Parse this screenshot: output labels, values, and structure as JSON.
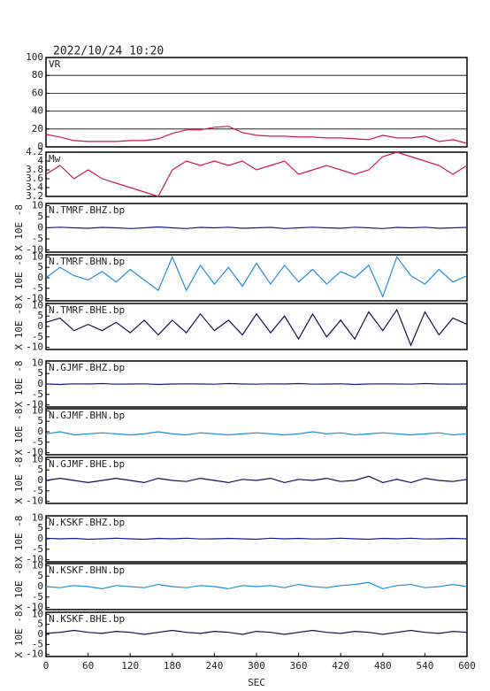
{
  "chart_data": [
    {
      "type": "line",
      "title": "2022/10/24 10:20",
      "label": "VR",
      "color": "#cc1a4a",
      "grid": true,
      "xlim": [
        0,
        600
      ],
      "ylim": [
        0,
        100
      ],
      "yticks": [
        0,
        20,
        40,
        60,
        80,
        100
      ],
      "x": [
        0,
        20,
        40,
        60,
        80,
        100,
        120,
        140,
        160,
        180,
        200,
        220,
        240,
        260,
        280,
        300,
        320,
        340,
        360,
        380,
        400,
        420,
        440,
        460,
        480,
        500,
        520,
        540,
        560,
        580,
        600
      ],
      "values": [
        14,
        11,
        7,
        6,
        6,
        6,
        7,
        7,
        9,
        15,
        19,
        19,
        22,
        23,
        16,
        13,
        12,
        12,
        11,
        11,
        10,
        10,
        9,
        8,
        13,
        10,
        10,
        12,
        6,
        8,
        4
      ]
    },
    {
      "type": "line",
      "label": "Mw",
      "color": "#cc1a4a",
      "grid": false,
      "xlim": [
        0,
        600
      ],
      "ylim": [
        3.2,
        4.2
      ],
      "yticks": [
        3.2,
        3.4,
        3.6,
        3.8,
        4,
        4.2
      ],
      "x": [
        0,
        20,
        40,
        60,
        80,
        100,
        120,
        140,
        160,
        180,
        200,
        220,
        240,
        260,
        280,
        300,
        320,
        340,
        360,
        380,
        400,
        420,
        440,
        460,
        480,
        500,
        520,
        540,
        560,
        580,
        600
      ],
      "values": [
        3.7,
        3.9,
        3.6,
        3.8,
        3.6,
        3.5,
        3.4,
        3.3,
        3.2,
        3.8,
        4.0,
        3.9,
        4.0,
        3.9,
        4.0,
        3.8,
        3.9,
        4.0,
        3.7,
        3.8,
        3.9,
        3.8,
        3.7,
        3.8,
        4.1,
        4.2,
        4.1,
        4.0,
        3.9,
        3.7,
        3.9
      ]
    },
    {
      "type": "line",
      "label": "N.TMRF.BHZ.bp",
      "ylabel": "X 10E -8",
      "color": "#1a1a8c",
      "grid": false,
      "xlim": [
        0,
        600
      ],
      "ylim": [
        -11,
        11
      ],
      "yticks": [
        -10,
        -5,
        0,
        5,
        10
      ],
      "x": [
        0,
        20,
        40,
        60,
        80,
        100,
        120,
        140,
        160,
        180,
        200,
        220,
        240,
        260,
        280,
        300,
        320,
        340,
        360,
        380,
        400,
        420,
        440,
        460,
        480,
        500,
        520,
        540,
        560,
        580,
        600
      ],
      "values": [
        0,
        0.3,
        0,
        -0.2,
        0.2,
        0,
        -0.3,
        0,
        0.4,
        0,
        -0.3,
        0.2,
        0,
        0.3,
        -0.2,
        0,
        0.2,
        -0.3,
        0,
        0.3,
        0,
        -0.2,
        0.3,
        0,
        -0.3,
        0.2,
        0,
        0.3,
        -0.2,
        0,
        0.2
      ]
    },
    {
      "type": "line",
      "label": "N.TMRF.BHN.bp",
      "ylabel": "X 10E -8",
      "color": "#1e8fd6",
      "grid": false,
      "xlim": [
        0,
        600
      ],
      "ylim": [
        -11,
        11
      ],
      "yticks": [
        -10,
        -5,
        0,
        5,
        10
      ],
      "x": [
        0,
        20,
        40,
        60,
        80,
        100,
        120,
        140,
        160,
        180,
        200,
        220,
        240,
        260,
        280,
        300,
        320,
        340,
        360,
        380,
        400,
        420,
        440,
        460,
        480,
        500,
        520,
        540,
        560,
        580,
        600
      ],
      "values": [
        0,
        5,
        1,
        -1,
        3,
        -2,
        4,
        -1,
        -6,
        10,
        -6,
        6,
        -3,
        5,
        -4,
        7,
        -3,
        6,
        -2,
        4,
        -3,
        3,
        0,
        6,
        -9,
        10,
        1,
        -3,
        4,
        -2,
        1
      ]
    },
    {
      "type": "line",
      "label": "N.TMRF.BHE.bp",
      "ylabel": "X 10E -8",
      "color": "#10104a",
      "grid": false,
      "xlim": [
        0,
        600
      ],
      "ylim": [
        -11,
        11
      ],
      "yticks": [
        -10,
        -5,
        0,
        5,
        10
      ],
      "x": [
        0,
        20,
        40,
        60,
        80,
        100,
        120,
        140,
        160,
        180,
        200,
        220,
        240,
        260,
        280,
        300,
        320,
        340,
        360,
        380,
        400,
        420,
        440,
        460,
        480,
        500,
        520,
        540,
        560,
        580,
        600
      ],
      "values": [
        2,
        4,
        -2,
        1,
        -2,
        2,
        -3,
        3,
        -4,
        3,
        -3,
        6,
        -2,
        3,
        -4,
        6,
        -3,
        5,
        -6,
        6,
        -5,
        3,
        -6,
        7,
        -2,
        8,
        -9,
        7,
        -4,
        4,
        1
      ]
    },
    {
      "type": "line",
      "label": "N.GJMF.BHZ.bp",
      "ylabel": "X 10E -8",
      "color": "#1a1a8c",
      "grid": false,
      "xlim": [
        0,
        600
      ],
      "ylim": [
        -11,
        11
      ],
      "yticks": [
        -10,
        -5,
        0,
        5,
        10
      ],
      "x": [
        0,
        20,
        40,
        60,
        80,
        100,
        120,
        140,
        160,
        180,
        200,
        220,
        240,
        260,
        280,
        300,
        320,
        340,
        360,
        380,
        400,
        420,
        440,
        460,
        480,
        500,
        520,
        540,
        560,
        580,
        600
      ],
      "values": [
        0,
        -0.2,
        0.1,
        0,
        0.2,
        -0.1,
        0,
        0.1,
        -0.2,
        0,
        0.1,
        0,
        -0.1,
        0.2,
        0,
        -0.1,
        0.1,
        0,
        0.2,
        -0.1,
        0,
        0.1,
        -0.2,
        0,
        0.1,
        0,
        -0.1,
        0.2,
        0,
        -0.1,
        0
      ]
    },
    {
      "type": "line",
      "label": "N.GJMF.BHN.bp",
      "ylabel": "X 10E -8",
      "color": "#1e8fd6",
      "grid": false,
      "xlim": [
        0,
        600
      ],
      "ylim": [
        -11,
        11
      ],
      "yticks": [
        -10,
        -5,
        0,
        5,
        10
      ],
      "x": [
        0,
        20,
        40,
        60,
        80,
        100,
        120,
        140,
        160,
        180,
        200,
        220,
        240,
        260,
        280,
        300,
        320,
        340,
        360,
        380,
        400,
        420,
        440,
        460,
        480,
        500,
        520,
        540,
        560,
        580,
        600
      ],
      "values": [
        -1,
        0,
        -1.5,
        -1,
        -0.5,
        -1,
        -1.5,
        -1,
        0,
        -1,
        -1.5,
        -0.5,
        -1,
        -1.5,
        -1,
        -0.5,
        -1,
        -1.5,
        -1,
        0,
        -1,
        -0.5,
        -1.5,
        -1,
        -0.5,
        -1,
        -1.5,
        -1,
        -0.5,
        -1.5,
        -1
      ]
    },
    {
      "type": "line",
      "label": "N.GJMF.BHE.bp",
      "ylabel": "X 10E -8",
      "color": "#10104a",
      "grid": false,
      "xlim": [
        0,
        600
      ],
      "ylim": [
        -11,
        11
      ],
      "yticks": [
        -10,
        -5,
        0,
        5,
        10
      ],
      "x": [
        0,
        20,
        40,
        60,
        80,
        100,
        120,
        140,
        160,
        180,
        200,
        220,
        240,
        260,
        280,
        300,
        320,
        340,
        360,
        380,
        400,
        420,
        440,
        460,
        480,
        500,
        520,
        540,
        560,
        580,
        600
      ],
      "values": [
        0,
        1,
        0,
        -1,
        0,
        1,
        0,
        -1,
        1,
        0,
        -0.5,
        1,
        0,
        -1,
        0.5,
        0,
        1,
        -1,
        0.5,
        0,
        1,
        -0.5,
        0,
        2,
        -1,
        0.5,
        -1,
        1,
        0,
        -0.5,
        0.5
      ]
    },
    {
      "type": "line",
      "label": "N.KSKF.BHZ.bp",
      "ylabel": "X 10E -8",
      "color": "#1a1a8c",
      "grid": false,
      "xlim": [
        0,
        600
      ],
      "ylim": [
        -11,
        11
      ],
      "yticks": [
        -10,
        -5,
        0,
        5,
        10
      ],
      "x": [
        0,
        20,
        40,
        60,
        80,
        100,
        120,
        140,
        160,
        180,
        200,
        220,
        240,
        260,
        280,
        300,
        320,
        340,
        360,
        380,
        400,
        420,
        440,
        460,
        480,
        500,
        520,
        540,
        560,
        580,
        600
      ],
      "values": [
        0.3,
        0,
        0.2,
        -0.2,
        0,
        0.3,
        0,
        -0.2,
        0.2,
        0,
        0.3,
        -0.1,
        0,
        0.2,
        0,
        -0.2,
        0.3,
        0,
        0.2,
        -0.1,
        0,
        0.3,
        0,
        -0.2,
        0.2,
        0,
        0.3,
        -0.1,
        0,
        0.2,
        0
      ]
    },
    {
      "type": "line",
      "label": "N.KSKF.BHN.bp",
      "ylabel": "X 10E -8",
      "color": "#1e8fd6",
      "grid": false,
      "xlim": [
        0,
        600
      ],
      "ylim": [
        -11,
        11
      ],
      "yticks": [
        -10,
        -5,
        0,
        5,
        10
      ],
      "x": [
        0,
        20,
        40,
        60,
        80,
        100,
        120,
        140,
        160,
        180,
        200,
        220,
        240,
        260,
        280,
        300,
        320,
        340,
        360,
        380,
        400,
        420,
        440,
        460,
        480,
        500,
        520,
        540,
        560,
        580,
        600
      ],
      "values": [
        0,
        -0.5,
        0.5,
        0,
        -1,
        0.5,
        0,
        -0.5,
        1,
        0,
        -0.5,
        0.5,
        0,
        -1,
        0.5,
        0,
        0.5,
        -0.5,
        1,
        0,
        -0.5,
        0.5,
        1,
        2,
        -1,
        0.5,
        1,
        -0.5,
        0,
        1,
        0
      ]
    },
    {
      "type": "line",
      "label": "N.KSKF.BHE.bp",
      "ylabel": "X 10E -8",
      "xlabel": "SEC",
      "color": "#10104a",
      "grid": false,
      "xlim": [
        0,
        600
      ],
      "ylim": [
        -11,
        11
      ],
      "yticks": [
        -10,
        -5,
        0,
        5,
        10
      ],
      "xticks": [
        0,
        60,
        120,
        180,
        240,
        300,
        360,
        420,
        480,
        540,
        600
      ],
      "x": [
        0,
        20,
        40,
        60,
        80,
        100,
        120,
        140,
        160,
        180,
        200,
        220,
        240,
        260,
        280,
        300,
        320,
        340,
        360,
        380,
        400,
        420,
        440,
        460,
        480,
        500,
        520,
        540,
        560,
        580,
        600
      ],
      "values": [
        0.5,
        1,
        2,
        1,
        0.5,
        1.5,
        1,
        0,
        1,
        2,
        1,
        0.5,
        1.5,
        1,
        0,
        1.5,
        1,
        0,
        1,
        2,
        1,
        0.5,
        1.5,
        1,
        0,
        1,
        2,
        1,
        0.5,
        1.5,
        1
      ]
    }
  ]
}
